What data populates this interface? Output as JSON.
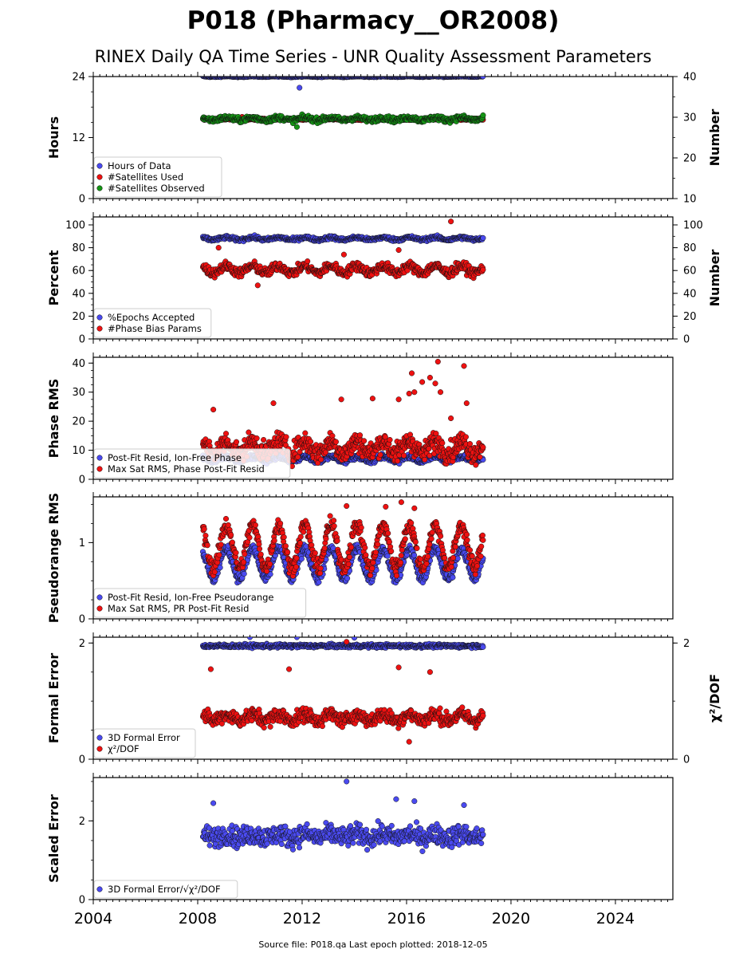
{
  "title": "P018 (Pharmacy__OR2008)",
  "subtitle": "RINEX Daily QA Time Series - UNR Quality Assessment Parameters",
  "footer": "Source file: P018.qa Last epoch plotted: 2018-12-05",
  "colors": {
    "blue": "#4a4af0",
    "red": "#ee1111",
    "green": "#159515"
  },
  "chart_data": [
    {
      "type": "scatter",
      "title": "",
      "xlabel": "",
      "xlim": [
        2004,
        2026.2
      ],
      "xticks": [
        "2004",
        "2008",
        "2012",
        "2016",
        "2020",
        "2024"
      ],
      "ylabel": "Hours",
      "ylim": [
        0,
        24
      ],
      "yticks": [
        "0",
        "12",
        "24"
      ],
      "y2label": "Number",
      "y2lim": [
        10,
        40
      ],
      "y2ticks": [
        "10",
        "20",
        "30",
        "40"
      ],
      "legend_position": "bottom-left",
      "series": [
        {
          "name": "Hours of Data",
          "color": "blue",
          "axis": "left",
          "x_range": [
            2008.2,
            2018.93
          ],
          "mean": 24.0,
          "amplitude": 0.05,
          "noise": 0.1,
          "outliers": [
            [
              2011.9,
              21.8
            ]
          ]
        },
        {
          "name": "#Satellites Used",
          "color": "red",
          "axis": "right",
          "x_range": [
            2008.2,
            2018.93
          ],
          "mean": 29.5,
          "amplitude": 0.0,
          "noise": 0.2,
          "outliers": [
            [
              2009.7,
              30.1
            ]
          ]
        },
        {
          "name": "#Satellites Observed",
          "color": "green",
          "axis": "right",
          "x_range": [
            2008.2,
            2018.93
          ],
          "mean": 29.6,
          "amplitude": 0.3,
          "noise": 0.6,
          "outliers": [
            [
              2011.8,
              27.6
            ]
          ]
        }
      ]
    },
    {
      "type": "scatter",
      "title": "",
      "xlabel": "",
      "xlim": [
        2004,
        2026.2
      ],
      "ylabel": "Percent",
      "ylim": [
        0,
        107
      ],
      "yticks": [
        "0",
        "20",
        "40",
        "60",
        "80",
        "100"
      ],
      "y2label": "Number",
      "y2lim": [
        0,
        107
      ],
      "y2ticks": [
        "0",
        "20",
        "40",
        "60",
        "80",
        "100"
      ],
      "legend_position": "bottom-left",
      "series": [
        {
          "name": "%Epochs Accepted",
          "color": "blue",
          "axis": "left",
          "x_range": [
            2008.2,
            2018.93
          ],
          "mean": 88,
          "amplitude": 1.0,
          "noise": 1.5,
          "outliers": []
        },
        {
          "name": "#Phase Bias Params",
          "color": "red",
          "axis": "right",
          "x_range": [
            2008.2,
            2018.93
          ],
          "mean": 61,
          "amplitude": 3,
          "noise": 4,
          "outliers": [
            [
              2017.7,
              103
            ],
            [
              2010.3,
              47
            ],
            [
              2008.8,
              80
            ],
            [
              2013.6,
              74
            ],
            [
              2015.7,
              78
            ]
          ]
        }
      ]
    },
    {
      "type": "scatter",
      "title": "",
      "xlabel": "",
      "xlim": [
        2004,
        2026.2
      ],
      "ylabel": "Phase RMS",
      "ylim": [
        0,
        42
      ],
      "yticks": [
        "0",
        "10",
        "20",
        "30",
        "40"
      ],
      "legend_position": "bottom-left",
      "series": [
        {
          "name": "Post-Fit Resid, Ion-Free Phase",
          "color": "blue",
          "axis": "left",
          "x_range": [
            2008.2,
            2018.93
          ],
          "mean": 7.0,
          "amplitude": 0.8,
          "noise": 0.8,
          "outliers": []
        },
        {
          "name": "Max Sat RMS, Phase Post-Fit Resid",
          "color": "red",
          "axis": "left",
          "x_range": [
            2008.2,
            2018.93
          ],
          "mean": 11,
          "amplitude": 2,
          "noise": 3.5,
          "outliers": [
            [
              2017.2,
              40.5
            ],
            [
              2018.2,
              39
            ],
            [
              2016.2,
              36.5
            ],
            [
              2016.9,
              35
            ],
            [
              2016.6,
              33.5
            ],
            [
              2017.1,
              33
            ],
            [
              2016.3,
              30
            ],
            [
              2016.1,
              29.5
            ],
            [
              2017.3,
              30
            ],
            [
              2013.5,
              27.5
            ],
            [
              2014.7,
              27.8
            ],
            [
              2015.7,
              27.5
            ],
            [
              2010.9,
              26.2
            ],
            [
              2018.3,
              26.2
            ],
            [
              2008.6,
              24
            ],
            [
              2017.7,
              21
            ]
          ]
        }
      ]
    },
    {
      "type": "scatter",
      "title": "",
      "xlabel": "",
      "xlim": [
        2004,
        2026.2
      ],
      "ylabel": "Pseudorange RMS",
      "ylim": [
        0,
        1.6
      ],
      "yticks": [
        "0",
        "1"
      ],
      "legend_position": "bottom-left",
      "series": [
        {
          "name": "Post-Fit Resid, Ion-Free Pseudorange",
          "color": "blue",
          "axis": "left",
          "x_range": [
            2008.2,
            2018.93
          ],
          "mean": 0.72,
          "amplitude": 0.2,
          "noise": 0.06,
          "outliers": []
        },
        {
          "name": "Max Sat RMS, PR Post-Fit Resid",
          "color": "red",
          "axis": "left",
          "x_range": [
            2008.2,
            2018.93
          ],
          "mean": 0.95,
          "amplitude": 0.28,
          "noise": 0.1,
          "outliers": [
            [
              2015.8,
              1.53
            ],
            [
              2015.2,
              1.47
            ],
            [
              2013.7,
              1.48
            ],
            [
              2016.3,
              1.45
            ]
          ]
        }
      ]
    },
    {
      "type": "scatter",
      "title": "",
      "xlabel": "",
      "xlim": [
        2004,
        2026.2
      ],
      "ylabel": "Formal Error",
      "ylim": [
        0,
        2.1
      ],
      "yticks": [
        "0",
        "2"
      ],
      "y2label": "χ²/DOF",
      "y2lim": [
        0,
        2.1
      ],
      "y2ticks": [
        "0",
        "2"
      ],
      "legend_position": "bottom-left",
      "series": [
        {
          "name": "3D Formal Error",
          "color": "blue",
          "axis": "left",
          "x_range": [
            2008.2,
            2018.93
          ],
          "mean": 1.95,
          "amplitude": 0.0,
          "noise": 0.03,
          "outliers": [
            [
              2010.0,
              2.1
            ],
            [
              2011.8,
              2.1
            ],
            [
              2014.0,
              2.09
            ]
          ]
        },
        {
          "name": "χ²/DOF",
          "color": "red",
          "axis": "right",
          "x_range": [
            2008.2,
            2018.93
          ],
          "mean": 0.72,
          "amplitude": 0.05,
          "noise": 0.12,
          "outliers": [
            [
              2013.7,
              2.02
            ],
            [
              2008.5,
              1.55
            ],
            [
              2011.5,
              1.55
            ],
            [
              2015.7,
              1.58
            ],
            [
              2016.9,
              1.5
            ],
            [
              2016.1,
              0.3
            ]
          ]
        }
      ]
    },
    {
      "type": "scatter",
      "title": "",
      "xlabel": "",
      "xlim": [
        2004,
        2026.2
      ],
      "ylabel": "Scaled Error",
      "ylim": [
        0,
        3.1
      ],
      "yticks": [
        "0",
        "2"
      ],
      "legend_position": "bottom-left",
      "series": [
        {
          "name": "3D Formal Error/√χ²/DOF",
          "color": "blue",
          "axis": "left",
          "x_range": [
            2008.2,
            2018.93
          ],
          "mean": 1.62,
          "amplitude": 0.05,
          "noise": 0.25,
          "outliers": [
            [
              2013.7,
              3.0
            ],
            [
              2015.6,
              2.55
            ],
            [
              2016.3,
              2.5
            ],
            [
              2018.2,
              2.4
            ],
            [
              2008.6,
              2.45
            ]
          ]
        }
      ]
    }
  ]
}
